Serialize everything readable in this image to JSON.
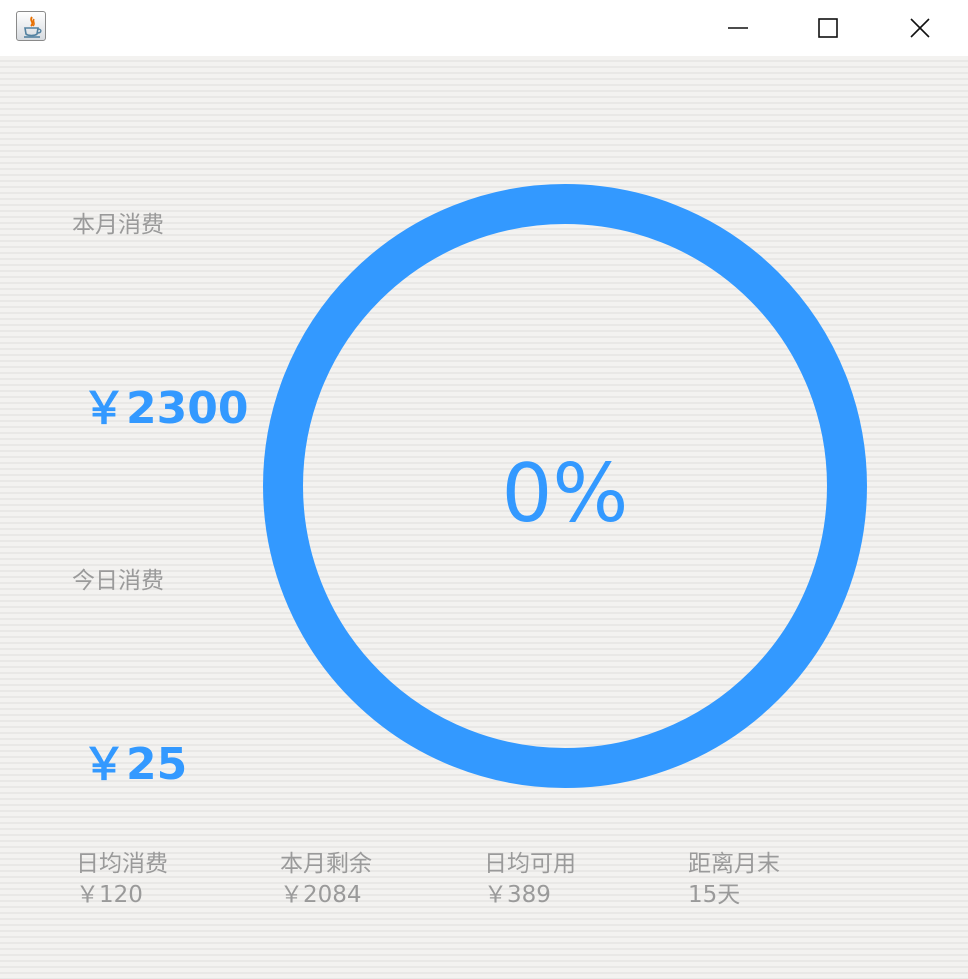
{
  "window": {
    "icon": "java-icon",
    "controls": [
      "minimize-icon",
      "maximize-icon",
      "close-icon"
    ]
  },
  "summary": {
    "month_label": "本月消费",
    "month_amount": "￥2300",
    "today_label": "今日消费",
    "today_amount": "￥25"
  },
  "progress": {
    "percent_text": "0%",
    "fraction": 0,
    "ring_color": "#3399ff"
  },
  "stats": [
    {
      "label": "日均消费",
      "value": "￥120"
    },
    {
      "label": "本月剩余",
      "value": "￥2084"
    },
    {
      "label": "日均可用",
      "value": "￥389"
    },
    {
      "label": "距离月末",
      "value": "15天"
    }
  ],
  "colors": {
    "accent": "#3399ff",
    "label_text": "#9a9a9a",
    "background": "#f2f1ef"
  }
}
